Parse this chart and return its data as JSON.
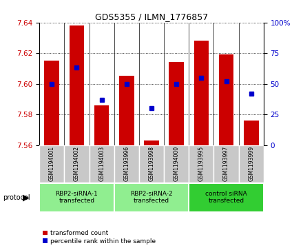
{
  "title": "GDS5355 / ILMN_1776857",
  "samples": [
    "GSM1194001",
    "GSM1194002",
    "GSM1194003",
    "GSM1193996",
    "GSM1193998",
    "GSM1194000",
    "GSM1193995",
    "GSM1193997",
    "GSM1193999"
  ],
  "red_values": [
    7.615,
    7.638,
    7.586,
    7.605,
    7.563,
    7.614,
    7.628,
    7.619,
    7.576
  ],
  "blue_values": [
    50,
    63,
    37,
    50,
    30,
    50,
    55,
    52,
    42
  ],
  "ylim": [
    7.56,
    7.64
  ],
  "yticks": [
    7.56,
    7.58,
    7.6,
    7.62,
    7.64
  ],
  "right_ylim": [
    0,
    100
  ],
  "right_yticks": [
    0,
    25,
    50,
    75,
    100
  ],
  "right_yticklabels": [
    "0",
    "25",
    "50",
    "75",
    "100%"
  ],
  "groups": [
    {
      "label": "RBP2-siRNA-1\ntransfected",
      "indices": [
        0,
        1,
        2
      ],
      "color": "#90ee90"
    },
    {
      "label": "RBP2-siRNA-2\ntransfected",
      "indices": [
        3,
        4,
        5
      ],
      "color": "#90ee90"
    },
    {
      "label": "control siRNA\ntransfected",
      "indices": [
        6,
        7,
        8
      ],
      "color": "#32cd32"
    }
  ],
  "red_color": "#cc0000",
  "blue_color": "#0000cc",
  "bar_width": 0.6,
  "base_value": 7.56,
  "cell_bg": "#c8c8c8",
  "plot_bg": "#ffffff"
}
